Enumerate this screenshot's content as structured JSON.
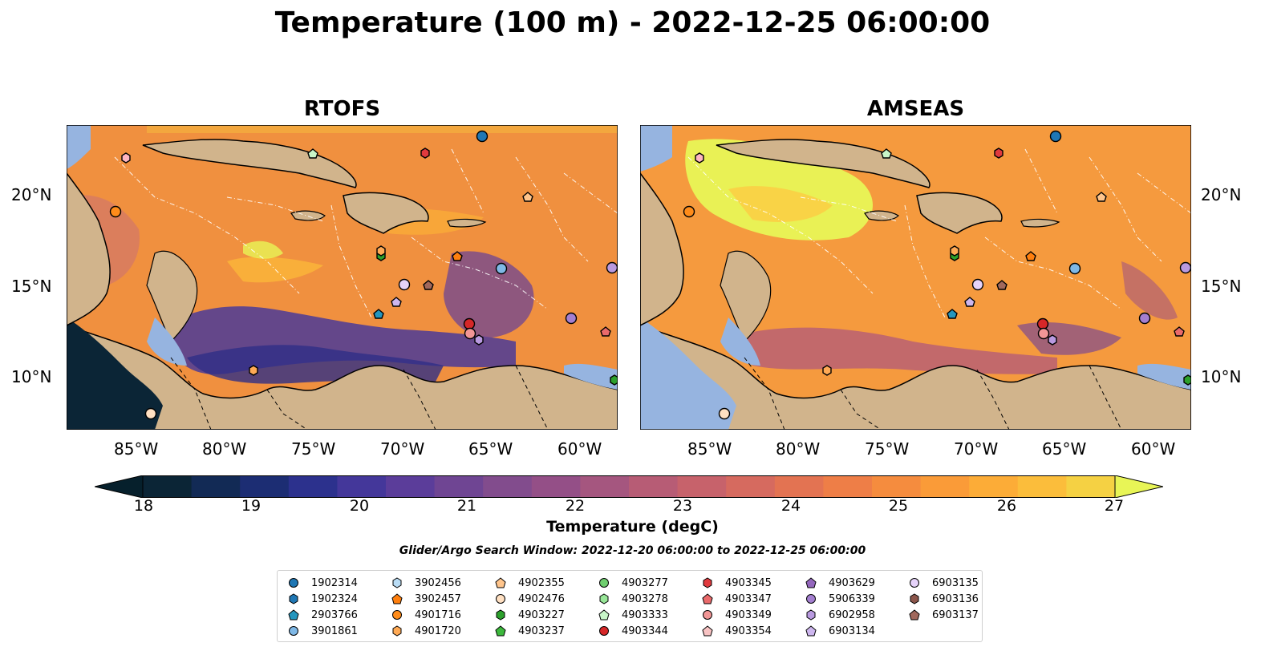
{
  "title": "Temperature (100 m) - 2022-12-25 06:00:00",
  "panels": [
    {
      "title": "RTOFS"
    },
    {
      "title": "AMSEAS"
    }
  ],
  "lon_ticks": [
    "85°W",
    "80°W",
    "75°W",
    "70°W",
    "65°W",
    "60°W"
  ],
  "lat_ticks": [
    "20°N",
    "15°N",
    "10°N"
  ],
  "colorbar": {
    "label": "Temperature (degC)",
    "ticks": [
      "18",
      "19",
      "20",
      "21",
      "22",
      "23",
      "24",
      "25",
      "26",
      "27"
    ],
    "colors": [
      "#0b2536",
      "#122a55",
      "#1c2d73",
      "#2c318d",
      "#44379a",
      "#5b3d9a",
      "#6f4593",
      "#824c8d",
      "#944f87",
      "#a5567f",
      "#b75c75",
      "#c7626b",
      "#d66a5f",
      "#e37352",
      "#ee7e47",
      "#f58c3e",
      "#fa9b38",
      "#fcac37",
      "#fbbd3b",
      "#f5d143"
    ],
    "under_color": "#06202c",
    "over_color": "#e8f556"
  },
  "search_window": "Glider/Argo Search Window: 2022-12-20 06:00:00 to 2022-12-25 06:00:00",
  "legend": [
    {
      "id": "1902314",
      "marker": "circle",
      "color": "#1f77b4"
    },
    {
      "id": "1902324",
      "marker": "hexagon",
      "color": "#1f77b4"
    },
    {
      "id": "2903766",
      "marker": "pentagon",
      "color": "#2596be"
    },
    {
      "id": "3901861",
      "marker": "circle",
      "color": "#7fb8e6"
    },
    {
      "id": "3902456",
      "marker": "hexagon",
      "color": "#b9dcf5"
    },
    {
      "id": "3902457",
      "marker": "pentagon",
      "color": "#ff7f0e"
    },
    {
      "id": "4901716",
      "marker": "circle",
      "color": "#ff8c1a"
    },
    {
      "id": "4901720",
      "marker": "hexagon",
      "color": "#ffaa55"
    },
    {
      "id": "4902355",
      "marker": "pentagon",
      "color": "#ffc58c"
    },
    {
      "id": "4902476",
      "marker": "circle",
      "color": "#ffe0c2"
    },
    {
      "id": "4903227",
      "marker": "hexagon",
      "color": "#2ca02c"
    },
    {
      "id": "4903237",
      "marker": "pentagon",
      "color": "#3cb83c"
    },
    {
      "id": "4903277",
      "marker": "circle",
      "color": "#6fcf6f"
    },
    {
      "id": "4903278",
      "marker": "hexagon",
      "color": "#98e698"
    },
    {
      "id": "4903333",
      "marker": "pentagon",
      "color": "#c8f5c8"
    },
    {
      "id": "4903344",
      "marker": "circle",
      "color": "#d62728"
    },
    {
      "id": "4903345",
      "marker": "hexagon",
      "color": "#e03a3e"
    },
    {
      "id": "4903347",
      "marker": "pentagon",
      "color": "#ea6a6b"
    },
    {
      "id": "4903349",
      "marker": "circle",
      "color": "#f19696"
    },
    {
      "id": "4903354",
      "marker": "pentagon",
      "color": "#f8c3c3"
    },
    {
      "id": "4903629",
      "marker": "pentagon",
      "color": "#9467bd"
    },
    {
      "id": "5906339",
      "marker": "circle",
      "color": "#a47fd0"
    },
    {
      "id": "6902958",
      "marker": "hexagon",
      "color": "#b99ae0"
    },
    {
      "id": "6903134",
      "marker": "pentagon",
      "color": "#cdb6ee"
    },
    {
      "id": "6903135",
      "marker": "circle",
      "color": "#e6d3fa"
    },
    {
      "id": "6903136",
      "marker": "hexagon",
      "color": "#8c564b"
    },
    {
      "id": "6903137",
      "marker": "pentagon",
      "color": "#a0685c"
    }
  ]
}
